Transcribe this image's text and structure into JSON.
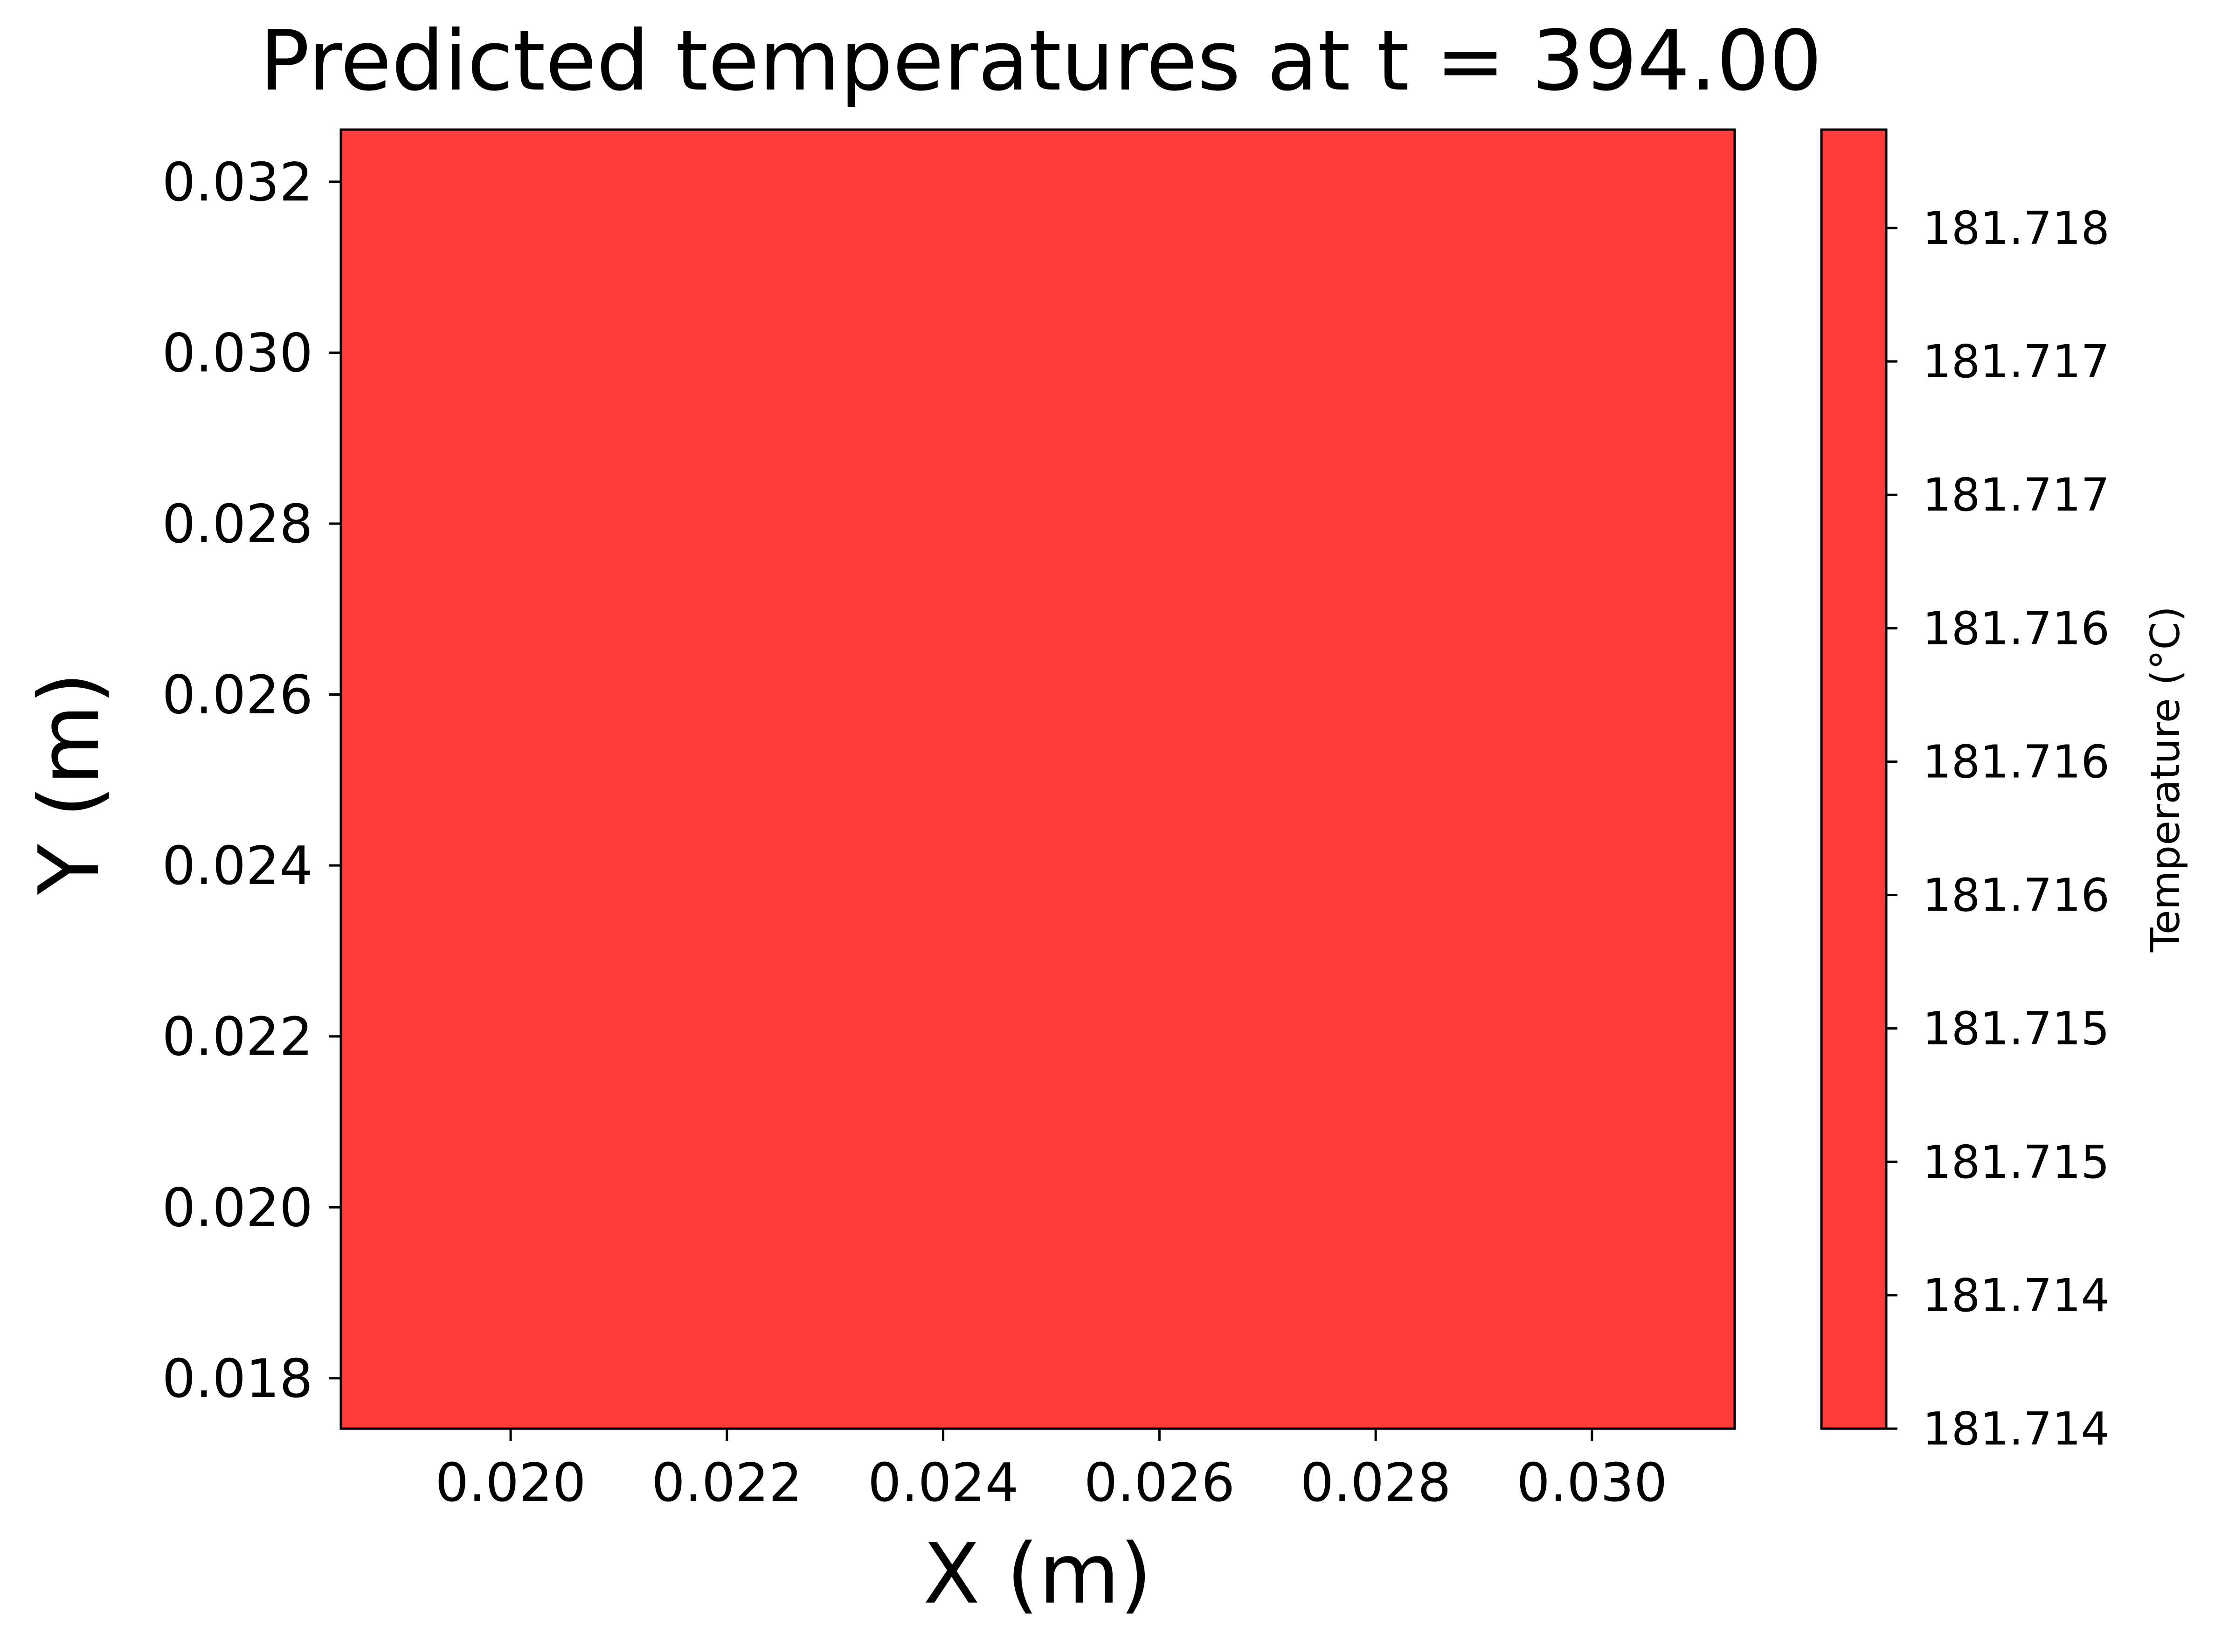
{
  "chart_data": {
    "type": "heatmap",
    "title": "Predicted temperatures at t = 394.00",
    "xlabel": "X (m)",
    "ylabel": "Y (m)",
    "xlim": [
      0.01843,
      0.03132
    ],
    "ylim": [
      0.01741,
      0.03261
    ],
    "xticks": [
      "0.020",
      "0.022",
      "0.024",
      "0.026",
      "0.028",
      "0.030"
    ],
    "yticks": [
      "0.018",
      "0.020",
      "0.022",
      "0.024",
      "0.026",
      "0.028",
      "0.030",
      "0.032"
    ],
    "field_color": "#ff3b3b",
    "field_value": 181.716,
    "grid": false,
    "colorbar": {
      "label": "Temperature (°C)",
      "ticks": [
        "181.714",
        "181.714",
        "181.715",
        "181.715",
        "181.716",
        "181.716",
        "181.716",
        "181.717",
        "181.717",
        "181.718"
      ],
      "color": "#ff3b3b"
    }
  }
}
